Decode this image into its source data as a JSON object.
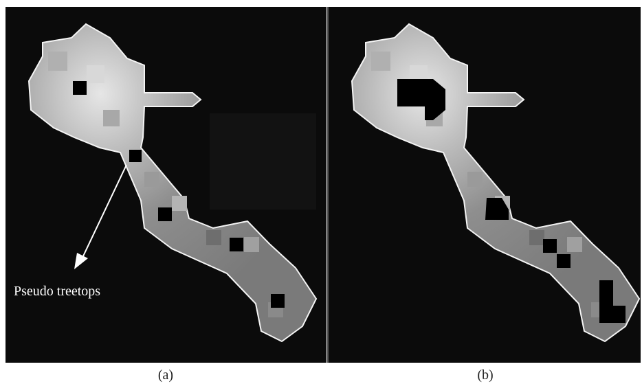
{
  "annotation": "Pseudo treetops",
  "panels": [
    {
      "caption": "(a)"
    },
    {
      "caption": "(b)"
    }
  ]
}
